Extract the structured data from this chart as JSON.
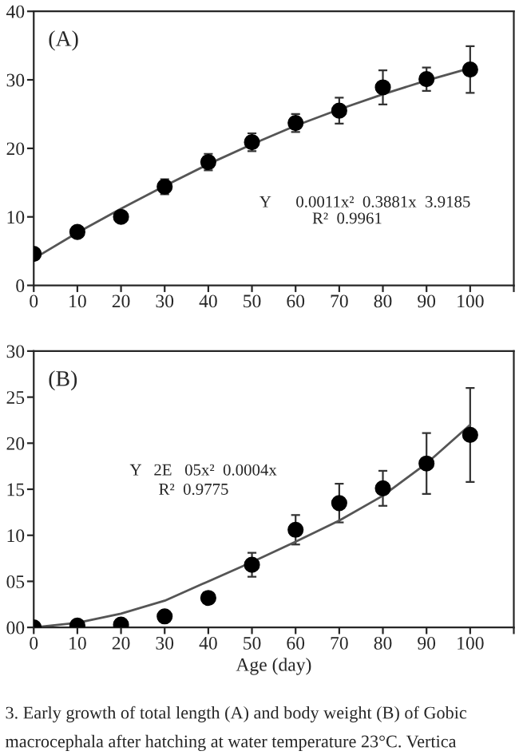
{
  "chart_data": [
    {
      "type": "scatter",
      "title": "(A)",
      "x": [
        0,
        10,
        20,
        30,
        40,
        50,
        60,
        70,
        80,
        90,
        100
      ],
      "grid": false,
      "legend": false,
      "series": [
        {
          "marker": "circle",
          "color": "#000000",
          "values": [
            4.6,
            7.8,
            10.0,
            14.4,
            18.0,
            20.9,
            23.7,
            25.5,
            28.9,
            30.1,
            31.5
          ],
          "errors": [
            0.3,
            0.4,
            0.7,
            1.1,
            1.2,
            1.3,
            1.3,
            1.9,
            2.5,
            1.7,
            3.4
          ]
        },
        {
          "type": "line",
          "marker": "none",
          "color": "#555555",
          "line_style": "solid",
          "x": [
            0,
            10,
            20,
            30,
            40,
            50,
            60,
            70,
            80,
            90,
            100
          ],
          "values": [
            3.9,
            7.7,
            11.2,
            14.5,
            17.7,
            20.6,
            23.3,
            25.7,
            27.9,
            29.9,
            31.7
          ]
        }
      ],
      "xlim": [
        0,
        110
      ],
      "xticks": [
        0,
        10,
        20,
        30,
        40,
        50,
        60,
        70,
        80,
        90,
        100,
        {
          "value": 110,
          "label": null
        }
      ],
      "ylim": [
        0,
        40
      ],
      "yticks": [
        0,
        10,
        20,
        30,
        40
      ],
      "annotations": [
        "Y      0.0011x²  0.3881x  3.9185",
        "R²  0.9961"
      ]
    },
    {
      "type": "scatter",
      "title": "(B)",
      "xlabel": "Age (day)",
      "x": [
        0,
        10,
        20,
        30,
        40,
        50,
        60,
        70,
        80,
        90,
        100
      ],
      "grid": false,
      "legend": false,
      "series": [
        {
          "marker": "circle",
          "color": "#000000",
          "values": [
            0.0,
            0.2,
            0.3,
            1.2,
            3.2,
            6.8,
            10.6,
            13.5,
            15.1,
            17.8,
            20.9
          ],
          "errors": [
            null,
            null,
            null,
            0.2,
            0.3,
            1.3,
            1.6,
            2.1,
            1.9,
            3.3,
            5.1
          ]
        },
        {
          "type": "line",
          "marker": "none",
          "color": "#555555",
          "line_style": "solid",
          "x": [
            0,
            10,
            20,
            30,
            40,
            50,
            60,
            70,
            80,
            90,
            100
          ],
          "values": [
            0.0,
            0.5,
            1.5,
            2.9,
            5.0,
            7.1,
            9.3,
            11.6,
            14.3,
            17.8,
            22.0
          ]
        }
      ],
      "xlim": [
        0,
        110
      ],
      "xticks": [
        0,
        10,
        20,
        30,
        40,
        50,
        60,
        70,
        80,
        90,
        100,
        {
          "value": 110,
          "label": null
        }
      ],
      "ylim": [
        0,
        30
      ],
      "yticks": [
        {
          "value": 0,
          "label": "00"
        },
        {
          "value": 5,
          "label": "05"
        },
        10,
        15,
        20,
        25,
        30
      ],
      "annotations": [
        "Y   2E   05x²  0.0004x",
        "R²  0.9775",
        "3. Early growth of total length (A) and body weight (B) of Gobic",
        "macrocephala after hatching at water temperature 23°C. Vertica"
      ]
    }
  ]
}
